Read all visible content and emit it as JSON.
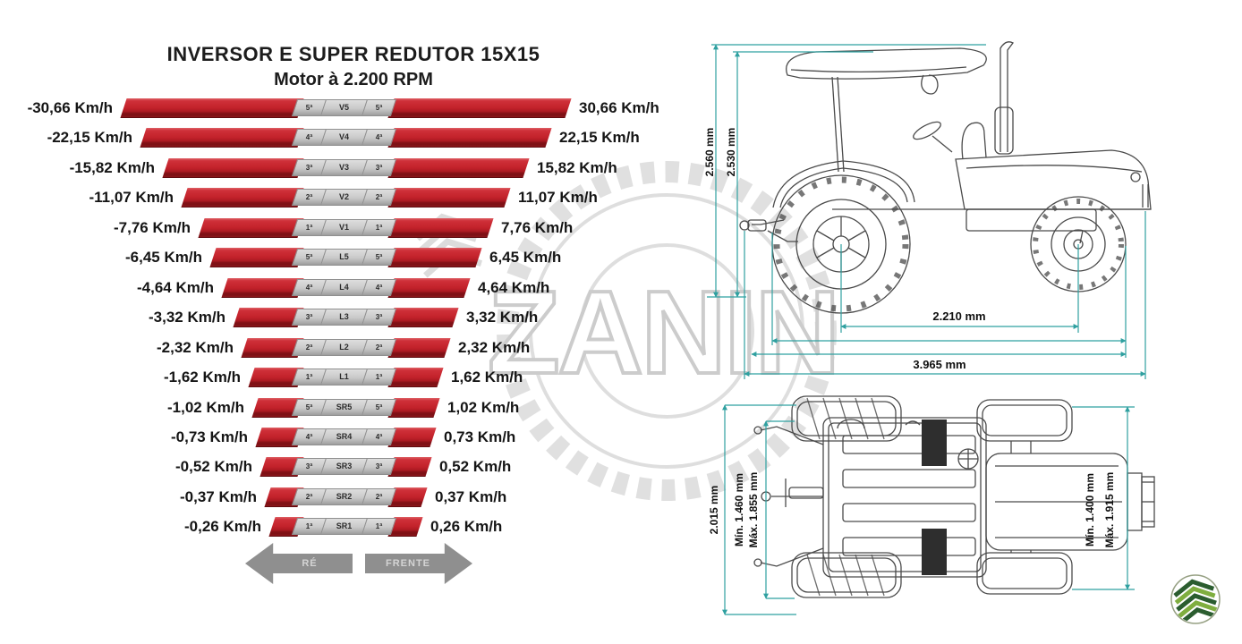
{
  "title": {
    "line1": "INVERSOR E SUPER REDUTOR 15X15",
    "line2": "Motor à 2.200 RPM"
  },
  "chart_data": {
    "type": "table",
    "description": "Gear speed chart: reverse (RÉ) and forward (FRENTE) speeds per gear at 2.200 RPM",
    "rows": [
      {
        "reverse": "-30,66 Km/h",
        "forward": "30,66 Km/h",
        "ordinal": "5ª",
        "code": "V5",
        "ext": 192
      },
      {
        "reverse": "-22,15 Km/h",
        "forward": "22,15 Km/h",
        "ordinal": "4ª",
        "code": "V4",
        "ext": 170
      },
      {
        "reverse": "-15,82 Km/h",
        "forward": "15,82 Km/h",
        "ordinal": "3ª",
        "code": "V3",
        "ext": 145
      },
      {
        "reverse": "-11,07 Km/h",
        "forward": "11,07 Km/h",
        "ordinal": "2ª",
        "code": "V2",
        "ext": 124
      },
      {
        "reverse": "-7,76 Km/h",
        "forward": "7,76 Km/h",
        "ordinal": "1ª",
        "code": "V1",
        "ext": 105
      },
      {
        "reverse": "-6,45 Km/h",
        "forward": "6,45 Km/h",
        "ordinal": "5ª",
        "code": "L5",
        "ext": 92
      },
      {
        "reverse": "-4,64 Km/h",
        "forward": "4,64 Km/h",
        "ordinal": "4ª",
        "code": "L4",
        "ext": 79
      },
      {
        "reverse": "-3,32 Km/h",
        "forward": "3,32 Km/h",
        "ordinal": "3ª",
        "code": "L3",
        "ext": 66
      },
      {
        "reverse": "-2,32 Km/h",
        "forward": "2,32 Km/h",
        "ordinal": "2ª",
        "code": "L2",
        "ext": 57
      },
      {
        "reverse": "-1,62 Km/h",
        "forward": "1,62 Km/h",
        "ordinal": "1ª",
        "code": "L1",
        "ext": 49
      },
      {
        "reverse": "-1,02 Km/h",
        "forward": "1,02 Km/h",
        "ordinal": "5ª",
        "code": "SR5",
        "ext": 45
      },
      {
        "reverse": "-0,73 Km/h",
        "forward": "0,73 Km/h",
        "ordinal": "4ª",
        "code": "SR4",
        "ext": 41
      },
      {
        "reverse": "-0,52 Km/h",
        "forward": "0,52 Km/h",
        "ordinal": "3ª",
        "code": "SR3",
        "ext": 36
      },
      {
        "reverse": "-0,37 Km/h",
        "forward": "0,37 Km/h",
        "ordinal": "2ª",
        "code": "SR2",
        "ext": 31
      },
      {
        "reverse": "-0,26 Km/h",
        "forward": "0,26 Km/h",
        "ordinal": "1ª",
        "code": "SR1",
        "ext": 26
      }
    ]
  },
  "arrows": {
    "reverse": "RÉ",
    "forward": "FRENTE"
  },
  "side_view": {
    "height_max": "2.560 mm",
    "height_canopy": "2.530 mm",
    "wheelbase": "2.210 mm",
    "length_total": "3.965 mm"
  },
  "top_view": {
    "width_total": "2.015 mm",
    "rear_track_min": "Mín. 1.460 mm",
    "rear_track_max": "Máx. 1.855 mm",
    "front_track_min": "Mín. 1.400 mm",
    "front_track_max": "Máx. 1.915 mm"
  },
  "watermark": {
    "text": "ZANIN"
  },
  "colors": {
    "bar_red": "#c2212a",
    "bar_red_dark": "#7c1014",
    "gear_gray": "#c6c6c6",
    "dim_teal": "#2fa0a0",
    "arrow_gray": "#8f8f8f",
    "logo_green_dark": "#2b5d2f",
    "logo_green_light": "#7fae3f"
  }
}
